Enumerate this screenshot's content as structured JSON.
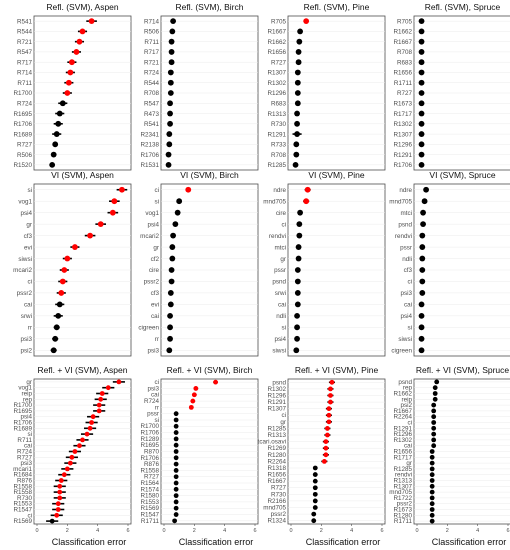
{
  "figure": {
    "xlabel": "Classification error",
    "colors": {
      "top": "#ff0000",
      "other": "#000000",
      "border": "#4d4d4d",
      "grid": "#ebebeb"
    }
  },
  "chart_data": [
    {
      "type": "scatter",
      "title": "Refl. (SVM), Aspen",
      "xlim": [
        0,
        6
      ],
      "xticks": [],
      "categories": [
        "R541",
        "R544",
        "R721",
        "R547",
        "R717",
        "R714",
        "R711",
        "R1700",
        "R724",
        "R1695",
        "R1706",
        "R1689",
        "R727",
        "R506",
        "R1520"
      ],
      "values": [
        3.6,
        3.0,
        2.8,
        2.6,
        2.3,
        2.2,
        2.1,
        2.0,
        1.7,
        1.5,
        1.4,
        1.3,
        1.2,
        1.1,
        1.0
      ],
      "errors": [
        0.35,
        0.3,
        0.3,
        0.3,
        0.3,
        0.3,
        0.3,
        0.3,
        0.3,
        0.3,
        0.3,
        0.3,
        0.15,
        0.15,
        0.1
      ],
      "highlight": [
        true,
        true,
        true,
        true,
        true,
        true,
        true,
        true,
        false,
        false,
        false,
        false,
        false,
        false,
        false
      ]
    },
    {
      "type": "scatter",
      "title": "Refl. (SVM), Birch",
      "xlim": [
        0,
        6
      ],
      "xticks": [],
      "categories": [
        "R714",
        "R506",
        "R711",
        "R717",
        "R721",
        "R724",
        "R544",
        "R708",
        "R547",
        "R473",
        "R541",
        "R2341",
        "R2138",
        "R1706",
        "R1531"
      ],
      "values": [
        0.6,
        0.55,
        0.5,
        0.5,
        0.5,
        0.45,
        0.45,
        0.45,
        0.4,
        0.4,
        0.4,
        0.35,
        0.35,
        0.3,
        0.3
      ],
      "errors": [
        0.1,
        0.1,
        0.1,
        0.1,
        0.1,
        0.1,
        0.1,
        0.1,
        0.1,
        0.1,
        0.1,
        0.1,
        0.1,
        0.1,
        0.1
      ],
      "highlight": [
        false,
        false,
        false,
        false,
        false,
        false,
        false,
        false,
        false,
        false,
        false,
        false,
        false,
        false,
        false
      ]
    },
    {
      "type": "scatter",
      "title": "Refl. (SVM), Pine",
      "xlim": [
        0,
        6
      ],
      "xticks": [],
      "categories": [
        "R705",
        "R1667",
        "R1662",
        "R1656",
        "R727",
        "R1307",
        "R1302",
        "R1296",
        "R683",
        "R1313",
        "R730",
        "R1291",
        "R733",
        "R708",
        "R1285"
      ],
      "values": [
        1.0,
        0.6,
        0.55,
        0.5,
        0.5,
        0.45,
        0.45,
        0.45,
        0.45,
        0.4,
        0.4,
        0.4,
        0.35,
        0.35,
        0.3
      ],
      "errors": [
        0.15,
        0.1,
        0.1,
        0.1,
        0.1,
        0.1,
        0.1,
        0.1,
        0.1,
        0.1,
        0.1,
        0.3,
        0.1,
        0.1,
        0.1
      ],
      "highlight": [
        true,
        false,
        false,
        false,
        false,
        false,
        false,
        false,
        false,
        false,
        false,
        false,
        false,
        false,
        false
      ]
    },
    {
      "type": "scatter",
      "title": "Refl. (SVM), Spruce",
      "xlim": [
        0,
        6
      ],
      "xticks": [],
      "categories": [
        "R705",
        "R1662",
        "R1667",
        "R708",
        "R683",
        "R1656",
        "R1711",
        "R727",
        "R1673",
        "R1717",
        "R1302",
        "R1307",
        "R1296",
        "R1291",
        "R1706"
      ],
      "values": [
        0.3,
        0.3,
        0.3,
        0.3,
        0.3,
        0.3,
        0.3,
        0.3,
        0.3,
        0.3,
        0.3,
        0.3,
        0.3,
        0.3,
        0.3
      ],
      "errors": [
        0.05,
        0.05,
        0.05,
        0.05,
        0.05,
        0.05,
        0.05,
        0.05,
        0.05,
        0.05,
        0.05,
        0.05,
        0.05,
        0.05,
        0.05
      ],
      "highlight": [
        false,
        false,
        false,
        false,
        false,
        false,
        false,
        false,
        false,
        false,
        false,
        false,
        false,
        false,
        false
      ]
    },
    {
      "type": "scatter",
      "title": "VI (SVM), Aspen",
      "xlim": [
        0,
        6
      ],
      "xticks": [],
      "categories": [
        "si",
        "vog1",
        "psi4",
        "gr",
        "cf3",
        "evi",
        "siwsi",
        "mcari2",
        "ci",
        "pssr2",
        "cai",
        "srwi",
        "rr",
        "psi3",
        "psi2"
      ],
      "values": [
        5.6,
        5.1,
        5.0,
        4.2,
        3.5,
        2.5,
        2.0,
        1.8,
        1.7,
        1.6,
        1.5,
        1.4,
        1.3,
        1.2,
        1.1
      ],
      "errors": [
        0.35,
        0.35,
        0.35,
        0.35,
        0.35,
        0.3,
        0.3,
        0.3,
        0.3,
        0.3,
        0.3,
        0.3,
        0.2,
        0.2,
        0.2
      ],
      "highlight": [
        true,
        true,
        true,
        true,
        true,
        true,
        true,
        true,
        true,
        true,
        false,
        false,
        false,
        false,
        false
      ]
    },
    {
      "type": "scatter",
      "title": "VI (SVM), Birch",
      "xlim": [
        0,
        6
      ],
      "xticks": [],
      "categories": [
        "ci",
        "si",
        "vog1",
        "psi4",
        "mcari2",
        "gr",
        "cf2",
        "cire",
        "pssr2",
        "cf3",
        "evi",
        "cai",
        "cigreen",
        "rr",
        "psi3"
      ],
      "values": [
        1.6,
        1.0,
        0.9,
        0.75,
        0.6,
        0.55,
        0.55,
        0.5,
        0.5,
        0.45,
        0.45,
        0.4,
        0.4,
        0.4,
        0.35
      ],
      "errors": [
        0.1,
        0.1,
        0.1,
        0.1,
        0.1,
        0.1,
        0.1,
        0.1,
        0.1,
        0.1,
        0.1,
        0.1,
        0.1,
        0.1,
        0.1
      ],
      "highlight": [
        true,
        false,
        false,
        false,
        false,
        false,
        false,
        false,
        false,
        false,
        false,
        false,
        false,
        false,
        false
      ]
    },
    {
      "type": "scatter",
      "title": "VI (SVM), Pine",
      "xlim": [
        0,
        6
      ],
      "xticks": [],
      "categories": [
        "ndre",
        "mnd705",
        "cire",
        "ci",
        "rendvi",
        "mtci",
        "gr",
        "pssr",
        "psnd",
        "srwi",
        "cai",
        "ndli",
        "si",
        "psi4",
        "siwsi"
      ],
      "values": [
        1.1,
        1.0,
        0.6,
        0.55,
        0.55,
        0.5,
        0.5,
        0.45,
        0.45,
        0.45,
        0.45,
        0.4,
        0.4,
        0.4,
        0.35
      ],
      "errors": [
        0.2,
        0.2,
        0.1,
        0.1,
        0.1,
        0.1,
        0.1,
        0.1,
        0.1,
        0.1,
        0.1,
        0.1,
        0.1,
        0.1,
        0.1
      ],
      "highlight": [
        true,
        true,
        false,
        false,
        false,
        false,
        false,
        false,
        false,
        false,
        false,
        false,
        false,
        false,
        false
      ]
    },
    {
      "type": "scatter",
      "title": "VI (SVM), Spruce",
      "xlim": [
        0,
        6
      ],
      "xticks": [],
      "categories": [
        "ndre",
        "mnd705",
        "mtci",
        "psnd",
        "rendvi",
        "pssr",
        "ndli",
        "cf3",
        "ci",
        "psi3",
        "cai",
        "psi4",
        "si",
        "siwsi",
        "cigreen"
      ],
      "values": [
        0.6,
        0.5,
        0.4,
        0.4,
        0.35,
        0.35,
        0.35,
        0.35,
        0.35,
        0.35,
        0.3,
        0.3,
        0.3,
        0.3,
        0.3
      ],
      "errors": [
        0.1,
        0.1,
        0.05,
        0.05,
        0.05,
        0.05,
        0.05,
        0.05,
        0.05,
        0.05,
        0.05,
        0.05,
        0.05,
        0.05,
        0.05
      ],
      "highlight": [
        false,
        false,
        false,
        false,
        false,
        false,
        false,
        false,
        false,
        false,
        false,
        false,
        false,
        false,
        false
      ]
    },
    {
      "type": "scatter",
      "title": "Refl. + VI (SVM), Aspen",
      "xlim": [
        0,
        6
      ],
      "xticks": [
        0,
        2,
        4,
        6
      ],
      "categories": [
        "gr",
        "vog1",
        "reip",
        "rep",
        "R1700",
        "R1695",
        "psi4",
        "R1706",
        "R1689",
        "si",
        "R711",
        "cai",
        "R724",
        "R727",
        "psi3",
        "mcari1",
        "R1684",
        "R876",
        "R1558",
        "R1558",
        "R730",
        "R1553",
        "R1547",
        "ci",
        "R1569"
      ],
      "values": [
        5.4,
        4.7,
        4.3,
        4.2,
        4.1,
        4.1,
        3.7,
        3.6,
        3.5,
        3.3,
        3.0,
        2.8,
        2.5,
        2.3,
        2.2,
        2.0,
        1.8,
        1.6,
        1.5,
        1.5,
        1.5,
        1.4,
        1.4,
        1.3,
        1.0
      ],
      "errors": [
        0.4,
        0.4,
        0.4,
        0.4,
        0.4,
        0.4,
        0.4,
        0.4,
        0.4,
        0.4,
        0.4,
        0.4,
        0.4,
        0.4,
        0.4,
        0.4,
        0.4,
        0.4,
        0.4,
        0.4,
        0.4,
        0.4,
        0.4,
        0.4,
        0.4
      ],
      "highlight": [
        true,
        true,
        true,
        true,
        true,
        true,
        true,
        true,
        true,
        true,
        true,
        true,
        true,
        true,
        true,
        true,
        true,
        true,
        true,
        true,
        true,
        true,
        true,
        true,
        false
      ]
    },
    {
      "type": "scatter",
      "title": "Refl. + VI (SVM), Birch",
      "xlim": [
        0,
        6
      ],
      "xticks": [
        0,
        2,
        4,
        6
      ],
      "categories": [
        "ci",
        "psi3",
        "cai",
        "R724",
        "rr",
        "pssr",
        "si",
        "R1700",
        "R1706",
        "R1289",
        "R1695",
        "R870",
        "R1706",
        "R876",
        "R1558",
        "R727",
        "R1564",
        "R1574",
        "R1580",
        "R1553",
        "R1569",
        "R1547",
        "R1711"
      ],
      "values": [
        3.4,
        2.1,
        2.0,
        1.9,
        1.8,
        0.8,
        0.8,
        0.8,
        0.8,
        0.8,
        0.8,
        0.8,
        0.8,
        0.8,
        0.8,
        0.8,
        0.8,
        0.8,
        0.8,
        0.8,
        0.8,
        0.8,
        0.7
      ],
      "errors": [
        0.15,
        0.15,
        0.15,
        0.15,
        0.15,
        0.1,
        0.1,
        0.1,
        0.1,
        0.1,
        0.1,
        0.1,
        0.1,
        0.1,
        0.1,
        0.1,
        0.1,
        0.1,
        0.1,
        0.1,
        0.1,
        0.1,
        0.1
      ],
      "highlight": [
        true,
        true,
        true,
        true,
        true,
        false,
        false,
        false,
        false,
        false,
        false,
        false,
        false,
        false,
        false,
        false,
        false,
        false,
        false,
        false,
        false,
        false,
        false
      ]
    },
    {
      "type": "scatter",
      "title": "Refl. + VI (SVM), Pine",
      "xlim": [
        0,
        6
      ],
      "xticks": [
        0,
        2,
        4,
        6
      ],
      "categories": [
        "psnd",
        "R1302",
        "R1296",
        "R1291",
        "R1307",
        "ci",
        "gr",
        "R1285",
        "R1313",
        "tcari.osavi",
        "R1269",
        "R1280",
        "R2264",
        "R1318",
        "R1656",
        "R1667",
        "R727",
        "R730",
        "R2166",
        "mnd705",
        "pssr2",
        "R1324"
      ],
      "values": [
        2.7,
        2.6,
        2.6,
        2.6,
        2.5,
        2.5,
        2.5,
        2.4,
        2.4,
        2.3,
        2.3,
        2.3,
        2.2,
        1.6,
        1.6,
        1.6,
        1.6,
        1.6,
        1.6,
        1.6,
        1.5,
        1.5
      ],
      "errors": [
        0.2,
        0.2,
        0.2,
        0.2,
        0.2,
        0.2,
        0.2,
        0.2,
        0.2,
        0.2,
        0.2,
        0.2,
        0.2,
        0.15,
        0.15,
        0.15,
        0.15,
        0.15,
        0.15,
        0.15,
        0.15,
        0.15
      ],
      "highlight": [
        true,
        true,
        true,
        true,
        true,
        true,
        true,
        true,
        true,
        true,
        true,
        true,
        true,
        false,
        false,
        false,
        false,
        false,
        false,
        false,
        false,
        false
      ]
    },
    {
      "type": "scatter",
      "title": "Refl. + VI (SVM), Spruce",
      "xlim": [
        0,
        6
      ],
      "xticks": [
        0,
        2,
        4,
        6
      ],
      "categories": [
        "psnd",
        "rep",
        "R1662",
        "reip",
        "psi2",
        "R1667",
        "R2264",
        "ci",
        "R1291",
        "R1296",
        "R1302",
        "cai",
        "R1656",
        "R1717",
        "gr",
        "R1285",
        "rendvi",
        "R1313",
        "R1307",
        "mnd705",
        "R1722",
        "pssr2",
        "R1673",
        "R1280",
        "R1711"
      ],
      "values": [
        1.3,
        1.2,
        1.2,
        1.2,
        1.1,
        1.1,
        1.1,
        1.1,
        1.1,
        1.1,
        1.1,
        1.1,
        1.0,
        1.0,
        1.0,
        1.0,
        1.0,
        1.0,
        1.0,
        1.0,
        1.0,
        1.0,
        1.0,
        1.0,
        1.0
      ],
      "errors": [
        0.15,
        0.1,
        0.1,
        0.1,
        0.1,
        0.1,
        0.1,
        0.1,
        0.1,
        0.1,
        0.1,
        0.1,
        0.1,
        0.1,
        0.1,
        0.1,
        0.1,
        0.1,
        0.1,
        0.1,
        0.1,
        0.1,
        0.1,
        0.1,
        0.1
      ],
      "highlight": [
        false,
        false,
        false,
        false,
        false,
        false,
        false,
        false,
        false,
        false,
        false,
        false,
        false,
        false,
        false,
        false,
        false,
        false,
        false,
        false,
        false,
        false,
        false,
        false,
        false
      ]
    }
  ]
}
